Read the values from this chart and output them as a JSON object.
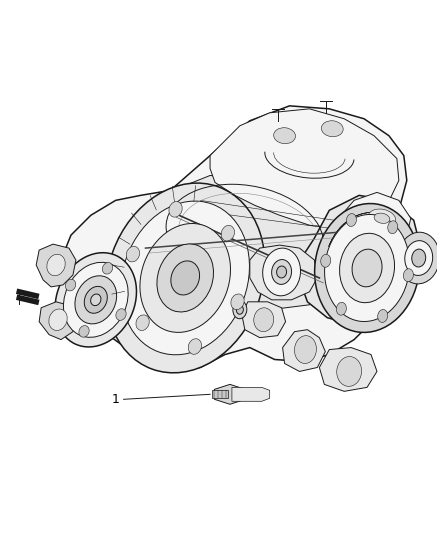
{
  "background_color": "#ffffff",
  "figsize": [
    4.38,
    5.33
  ],
  "dpi": 100,
  "part_label": "1",
  "line_color": "#1a1a1a",
  "text_color": "#000000",
  "label_fontsize": 9,
  "lw_main": 0.7,
  "lw_thick": 1.1,
  "lw_thin": 0.4,
  "fill_light": "#f5f5f5",
  "fill_mid": "#e8e8e8",
  "fill_dark": "#d8d8d8",
  "fill_darker": "#c8c8c8"
}
